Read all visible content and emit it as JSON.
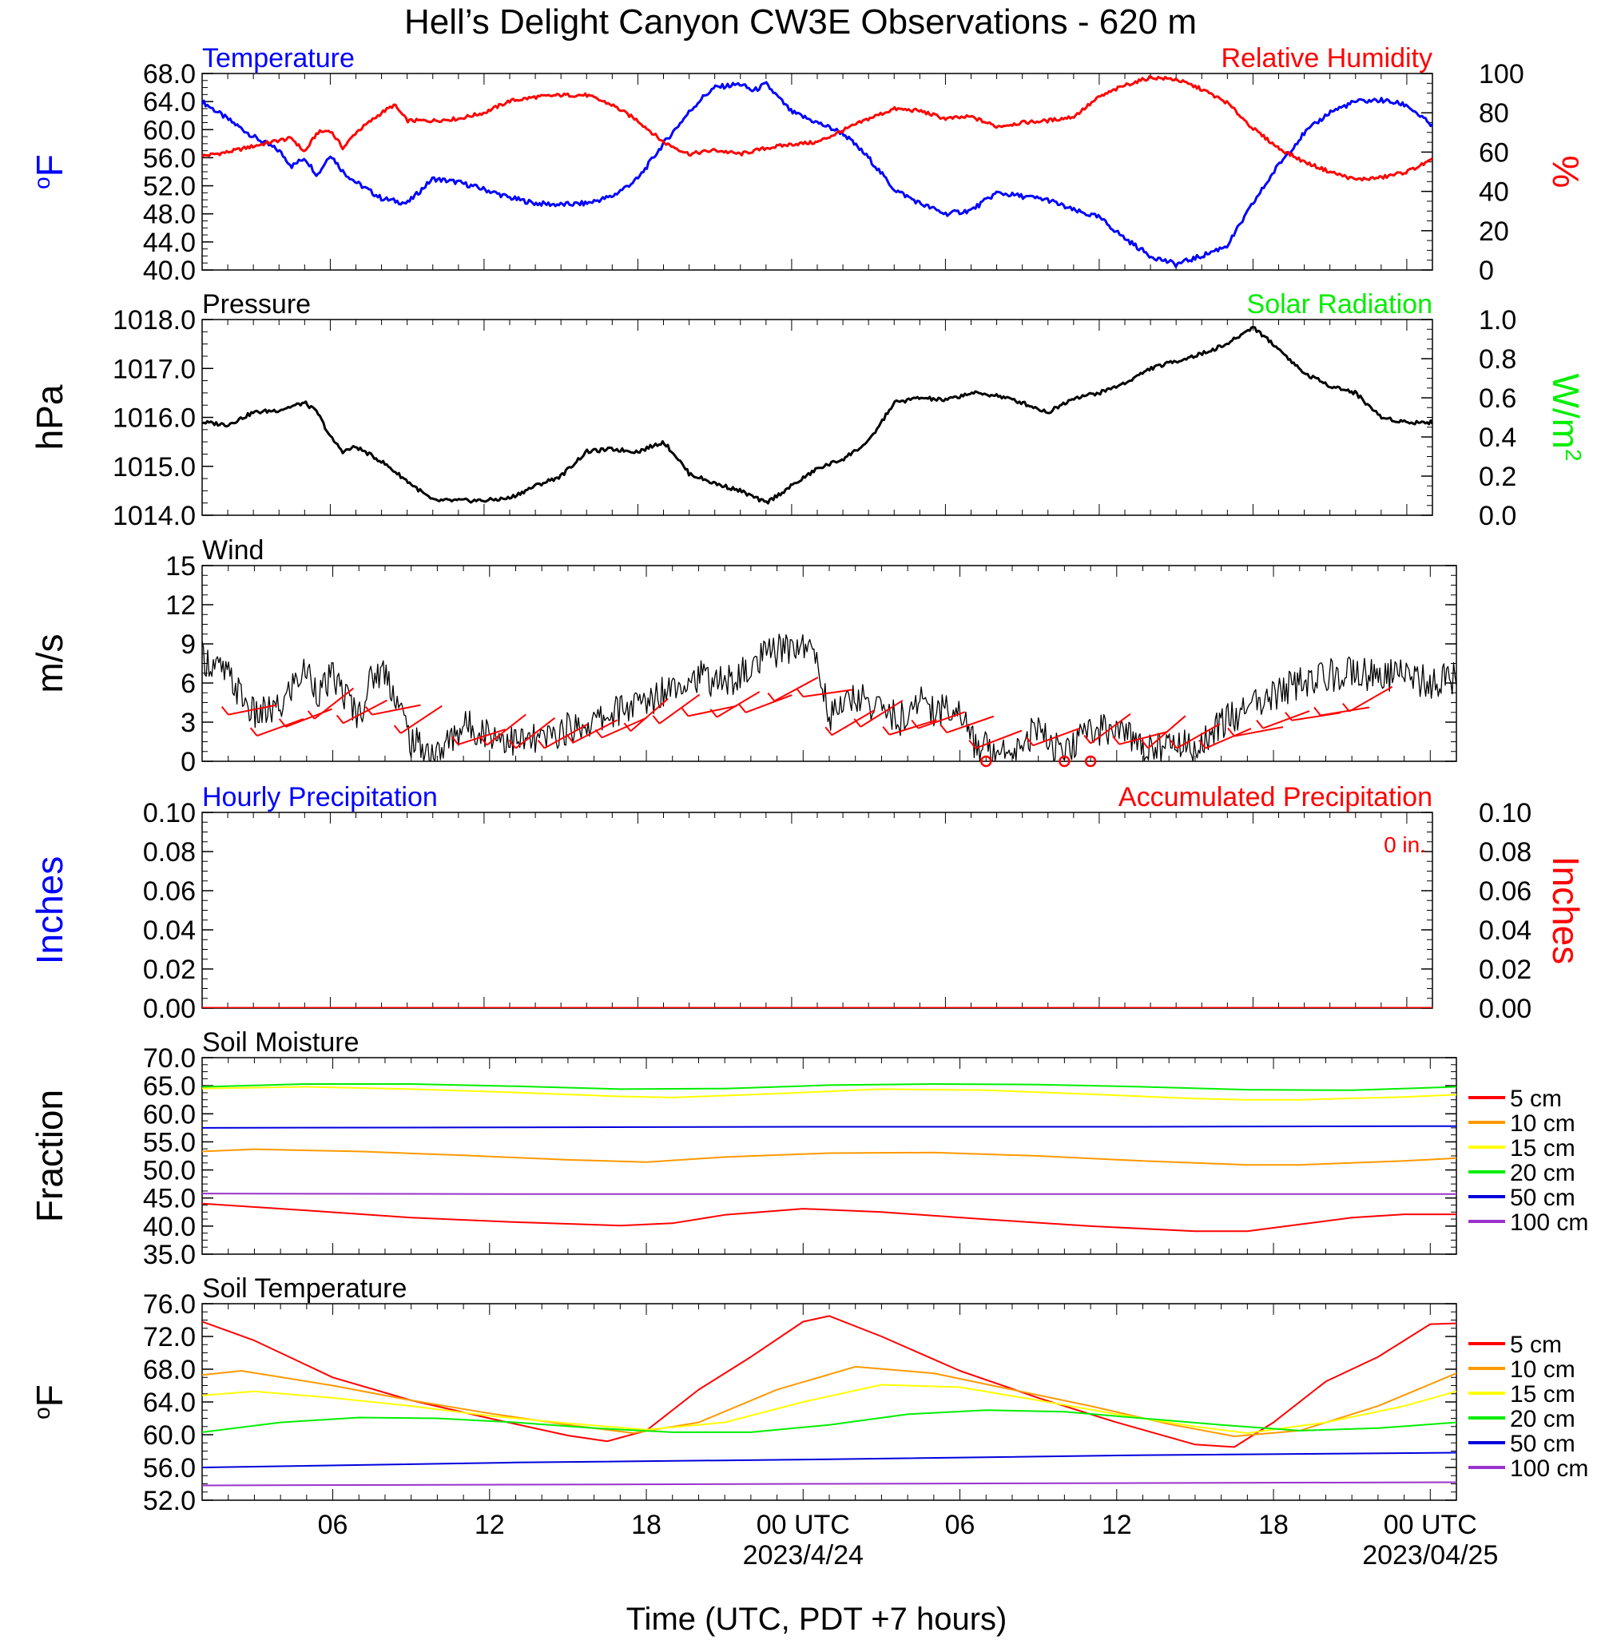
{
  "title": "Hell’s Delight Canyon CW3E Observations - 620 m",
  "xlabel": "Time (UTC, PDT +7 hours)",
  "x_axis": {
    "range_hours": [
      0,
      48
    ],
    "ticks": [
      {
        "hour": 5,
        "label": "06",
        "sub": ""
      },
      {
        "hour": 11,
        "label": "12",
        "sub": ""
      },
      {
        "hour": 17,
        "label": "18",
        "sub": ""
      },
      {
        "hour": 23,
        "label": "00 UTC",
        "sub": "2023/4/24"
      },
      {
        "hour": 29,
        "label": "06",
        "sub": ""
      },
      {
        "hour": 35,
        "label": "12",
        "sub": ""
      },
      {
        "hour": 41,
        "label": "18",
        "sub": ""
      },
      {
        "hour": 47,
        "label": "00 UTC",
        "sub": "2023/04/25"
      }
    ]
  },
  "colors": {
    "temperature": "#0000ff",
    "humidity": "#ff0000",
    "pressure": "#000000",
    "solar": "#00ee00",
    "wind": "#000000",
    "wind_barb": "#ff0000",
    "precip_hourly": "#0000ff",
    "precip_accum": "#ff0000"
  },
  "chart_data": [
    {
      "id": "temp_rh",
      "type": "line",
      "title_left": "Temperature",
      "title_right": "Relative Humidity",
      "ylabel_left": "oF",
      "ylabel_right": "%",
      "ylim_left": [
        40,
        68
      ],
      "ylim_right": [
        0,
        100
      ],
      "yticks_left": [
        "68.0",
        "64.0",
        "60.0",
        "56.0",
        "52.0",
        "48.0",
        "44.0",
        "40.0"
      ],
      "yticks_right": [
        "100",
        "80",
        "60",
        "40",
        "20",
        "0"
      ],
      "series": [
        {
          "name": "Temperature",
          "axis": "left",
          "color": "#0000ff",
          "x": [
            0,
            1,
            2,
            3,
            3.5,
            4,
            4.5,
            5,
            5.5,
            6,
            7,
            8,
            9,
            10,
            11,
            12,
            13,
            14,
            15,
            16,
            17,
            18,
            19,
            19.5,
            20,
            21,
            21.5,
            22,
            23,
            24,
            25,
            26,
            27,
            28,
            29,
            30,
            31,
            32,
            33,
            34,
            35,
            36,
            37,
            38,
            39,
            40,
            41,
            42,
            43,
            44,
            45,
            46,
            47,
            48
          ],
          "y": [
            64,
            61.5,
            59,
            57,
            54.8,
            56,
            53.5,
            56.5,
            54,
            52.5,
            50.2,
            49.5,
            53,
            52.5,
            51.5,
            50.3,
            49.5,
            49.3,
            49.5,
            50.5,
            53,
            58,
            62.5,
            64.5,
            66,
            66.5,
            65.5,
            66.5,
            62.5,
            61,
            59.5,
            56,
            51.5,
            49.5,
            48,
            48.5,
            51,
            50.5,
            50,
            48.5,
            47.5,
            44.5,
            42,
            40.8,
            42,
            43.5,
            49.5,
            55,
            59.5,
            62.5,
            64,
            64.2,
            63.5,
            60.5
          ]
        },
        {
          "name": "Relative Humidity",
          "axis": "right",
          "color": "#ff0000",
          "x": [
            0,
            1,
            2,
            3,
            3.5,
            4,
            4.5,
            5,
            5.5,
            6,
            7,
            7.5,
            8,
            9,
            10,
            11,
            12,
            13,
            14,
            15,
            16,
            17,
            18,
            19,
            20,
            21,
            22,
            23,
            24,
            25,
            26,
            27,
            28,
            29,
            30,
            31,
            32,
            33,
            34,
            35,
            36,
            37,
            38,
            39,
            40,
            41,
            42,
            43,
            44,
            45,
            46,
            47,
            48
          ],
          "y": [
            58,
            60,
            63,
            66,
            67,
            60,
            70,
            71,
            62,
            70,
            80,
            84,
            76,
            76,
            77,
            80,
            86,
            88,
            89,
            89,
            84,
            76,
            65,
            59,
            61,
            59,
            62,
            64,
            65,
            71,
            77,
            82,
            81,
            77,
            78,
            73,
            75,
            76,
            78,
            88,
            94,
            98,
            97,
            92,
            85,
            72,
            62,
            55,
            50,
            46,
            47,
            50,
            56
          ]
        }
      ]
    },
    {
      "id": "pressure_solar",
      "type": "line",
      "title_left": "Pressure",
      "title_right": "Solar Radiation",
      "ylabel_left": "hPa",
      "ylabel_right": "W/m2",
      "ylim_left": [
        1014,
        1018
      ],
      "ylim_right": [
        0,
        1
      ],
      "yticks_left": [
        "1018.0",
        "1017.0",
        "1016.0",
        "1015.0",
        "1014.0"
      ],
      "yticks_right": [
        "1.0",
        "0.8",
        "0.6",
        "0.4",
        "0.2",
        "0.0"
      ],
      "series": [
        {
          "name": "Pressure",
          "axis": "left",
          "color": "#000000",
          "x": [
            0,
            1,
            2,
            3,
            4,
            4.5,
            5,
            5.5,
            6,
            7,
            8,
            9,
            10,
            11,
            12,
            13,
            14,
            15,
            16,
            17,
            18,
            18.5,
            19,
            20,
            21,
            22,
            23,
            24,
            25,
            26,
            27,
            28,
            29,
            30,
            31,
            32,
            33,
            34,
            35,
            36,
            37,
            38,
            39,
            40,
            41,
            42,
            43,
            44,
            45,
            46,
            47,
            48
          ],
          "y": [
            1015.9,
            1015.85,
            1016.1,
            1016.15,
            1016.3,
            1016.1,
            1015.6,
            1015.3,
            1015.4,
            1015.1,
            1014.7,
            1014.3,
            1014.3,
            1014.3,
            1014.35,
            1014.6,
            1014.8,
            1015.3,
            1015.35,
            1015.3,
            1015.5,
            1015.2,
            1014.85,
            1014.65,
            1014.5,
            1014.25,
            1014.6,
            1014.95,
            1015.15,
            1015.5,
            1016.3,
            1016.4,
            1016.35,
            1016.5,
            1016.45,
            1016.3,
            1016.1,
            1016.4,
            1016.5,
            1016.7,
            1017.0,
            1017.15,
            1017.3,
            1017.5,
            1017.85,
            1017.4,
            1016.9,
            1016.65,
            1016.5,
            1016.0,
            1015.9,
            1015.9
          ]
        }
      ]
    },
    {
      "id": "wind",
      "type": "line",
      "title_left": "Wind",
      "ylabel_left": "m/s",
      "ylim_left": [
        0,
        15
      ],
      "yticks_left": [
        "15",
        "12",
        "9",
        "6",
        "3",
        "0"
      ],
      "series": [
        {
          "name": "Wind",
          "axis": "left",
          "color": "#000000",
          "x": [
            0,
            1,
            2,
            3,
            3.5,
            4,
            4.5,
            5,
            6,
            6.5,
            7,
            7.5,
            8,
            9,
            10,
            11,
            12,
            13,
            14,
            15,
            16,
            17,
            18,
            19,
            20,
            21,
            21.5,
            22,
            23,
            23.5,
            24,
            25,
            26,
            27,
            27.5,
            28,
            29,
            29.5,
            30,
            31,
            32,
            33,
            33.5,
            34,
            35,
            36,
            37,
            37.5,
            38,
            39,
            40,
            41,
            42,
            43,
            44,
            45,
            46,
            47,
            48
          ],
          "y": [
            8,
            6.5,
            3.5,
            4,
            6,
            7,
            5.2,
            6.5,
            3.5,
            6.5,
            7,
            4.5,
            1.5,
            0.5,
            2.8,
            2.2,
            1.5,
            1.6,
            2.5,
            3,
            4,
            4.5,
            6,
            6.5,
            6,
            7,
            8,
            8.5,
            9,
            8,
            3.5,
            5,
            4,
            3,
            5,
            4,
            4,
            1.5,
            1,
            1,
            2.5,
            0.3,
            1.5,
            2.5,
            2.5,
            1.2,
            1.2,
            1.3,
            1,
            3,
            4,
            5,
            6,
            6.5,
            7,
            6.5,
            6.5,
            6,
            6.5
          ]
        }
      ],
      "calm_marker_hours": [
        30,
        33,
        34
      ]
    },
    {
      "id": "precip",
      "type": "line",
      "title_left": "Hourly Precipitation",
      "title_right": "Accumulated Precipitation",
      "annotation": "0 in.",
      "ylabel_left": "Inches",
      "ylabel_right": "Inches",
      "ylim_left": [
        0,
        0.1
      ],
      "ylim_right": [
        0,
        0.1
      ],
      "yticks_left": [
        "0.10",
        "0.08",
        "0.06",
        "0.04",
        "0.02",
        "0.00"
      ],
      "yticks_right": [
        "0.10",
        "0.08",
        "0.06",
        "0.04",
        "0.02",
        "0.00"
      ],
      "series": [
        {
          "name": "Hourly Precipitation",
          "axis": "left",
          "color": "#0000ff",
          "x": [
            0,
            48
          ],
          "y": [
            0,
            0
          ]
        },
        {
          "name": "Accumulated Precipitation",
          "axis": "right",
          "color": "#ff0000",
          "x": [
            0,
            48
          ],
          "y": [
            0,
            0
          ]
        }
      ]
    },
    {
      "id": "soil_moisture",
      "type": "line",
      "title_left": "Soil Moisture",
      "ylabel_left": "Fraction",
      "ylim_left": [
        35,
        70
      ],
      "yticks_left": [
        "70.0",
        "65.0",
        "60.0",
        "55.0",
        "50.0",
        "45.0",
        "40.0",
        "35.0"
      ],
      "legend": [
        "5 cm",
        "10 cm",
        "15 cm",
        "20 cm",
        "50 cm",
        "100 cm"
      ],
      "series": [
        {
          "name": "5 cm",
          "color": "#ff0000",
          "x": [
            0,
            4,
            8,
            12,
            16,
            18,
            20,
            23,
            26,
            30,
            34,
            38,
            40,
            42,
            44,
            46,
            48
          ],
          "y": [
            44,
            42.8,
            41.5,
            40.7,
            40.1,
            40.5,
            42,
            43.1,
            42.5,
            41.2,
            40,
            39.1,
            39.1,
            40.3,
            41.5,
            42.1,
            42.1
          ]
        },
        {
          "name": "10 cm",
          "color": "#ff9900",
          "x": [
            0,
            2,
            6,
            10,
            14,
            17,
            20,
            24,
            28,
            32,
            36,
            40,
            42,
            46,
            48
          ],
          "y": [
            53.3,
            53.7,
            53.3,
            52.6,
            51.8,
            51.4,
            52.3,
            53,
            53.1,
            52.5,
            51.6,
            50.9,
            50.9,
            51.6,
            52.1
          ]
        },
        {
          "name": "15 cm",
          "color": "#ffff00",
          "x": [
            0,
            4,
            8,
            12,
            16,
            18,
            22,
            26,
            30,
            34,
            38,
            40,
            42,
            46,
            48
          ],
          "y": [
            64.5,
            64.8,
            64.4,
            63.8,
            63.1,
            62.9,
            63.6,
            64.4,
            64.2,
            63.5,
            62.7,
            62.5,
            62.5,
            63,
            63.4
          ]
        },
        {
          "name": "20 cm",
          "color": "#00ee00",
          "x": [
            0,
            4,
            8,
            12,
            16,
            20,
            24,
            28,
            32,
            36,
            40,
            44,
            48
          ],
          "y": [
            64.8,
            65.3,
            65.3,
            64.9,
            64.4,
            64.5,
            65.1,
            65.3,
            65.2,
            64.8,
            64.3,
            64.2,
            64.8
          ]
        },
        {
          "name": "50 cm",
          "color": "#0000dd",
          "x": [
            0,
            12,
            24,
            36,
            48
          ],
          "y": [
            57.5,
            57.6,
            57.7,
            57.7,
            57.8
          ]
        },
        {
          "name": "100 cm",
          "color": "#9933cc",
          "x": [
            0,
            12,
            24,
            36,
            48
          ],
          "y": [
            45.8,
            45.7,
            45.7,
            45.7,
            45.7
          ]
        }
      ]
    },
    {
      "id": "soil_temperature",
      "type": "line",
      "title_left": "Soil Temperature",
      "ylabel_left": "oF",
      "ylim_left": [
        52,
        76
      ],
      "yticks_left": [
        "76.0",
        "72.0",
        "68.0",
        "64.0",
        "60.0",
        "56.0",
        "52.0"
      ],
      "legend": [
        "5 cm",
        "10 cm",
        "15 cm",
        "20 cm",
        "50 cm",
        "100 cm"
      ],
      "series": [
        {
          "name": "5 cm",
          "color": "#ff0000",
          "x": [
            0,
            2,
            5,
            8,
            11,
            14,
            15.5,
            17,
            19,
            21,
            23,
            24,
            26,
            29,
            32,
            35,
            38,
            39.5,
            41,
            43,
            45,
            47,
            48
          ],
          "y": [
            73.8,
            71.5,
            67,
            64.2,
            62,
            59.9,
            59.2,
            60.5,
            65.5,
            69.5,
            73.8,
            74.5,
            72,
            67.8,
            64.5,
            61.5,
            58.8,
            58.5,
            61.5,
            66.5,
            69.5,
            73.5,
            73.6
          ]
        },
        {
          "name": "10 cm",
          "color": "#ff9900",
          "x": [
            0,
            1.5,
            5,
            8,
            11,
            14,
            16.5,
            19,
            22,
            25,
            28,
            31,
            34,
            37,
            39.5,
            42,
            45,
            48
          ],
          "y": [
            67.3,
            67.8,
            66,
            64.2,
            62.6,
            61.2,
            60.2,
            61.5,
            65.5,
            68.3,
            67.5,
            65.5,
            63.5,
            61.3,
            59.8,
            60.5,
            63.5,
            67.5
          ]
        },
        {
          "name": "15 cm",
          "color": "#ffff00",
          "x": [
            0,
            2,
            5,
            8,
            11,
            14,
            17,
            20,
            23,
            26,
            29,
            32,
            35,
            38,
            40,
            43,
            46,
            48
          ],
          "y": [
            64.8,
            65.3,
            64.5,
            63.5,
            62.3,
            61.4,
            60.6,
            61.5,
            64,
            66.1,
            65.8,
            64.2,
            62.5,
            61,
            60.2,
            61.5,
            63.5,
            65.3
          ]
        },
        {
          "name": "20 cm",
          "color": "#00ee00",
          "x": [
            0,
            3,
            6,
            9,
            12,
            15,
            18,
            21,
            24,
            27,
            30,
            33,
            36,
            39,
            42,
            45,
            48
          ],
          "y": [
            60.3,
            61.5,
            62.1,
            62,
            61.5,
            60.8,
            60.3,
            60.3,
            61.2,
            62.5,
            63,
            62.8,
            62,
            61.2,
            60.5,
            60.8,
            61.5
          ]
        },
        {
          "name": "50 cm",
          "color": "#0000dd",
          "x": [
            0,
            12,
            24,
            36,
            48
          ],
          "y": [
            56,
            56.6,
            57,
            57.5,
            57.8
          ]
        },
        {
          "name": "100 cm",
          "color": "#9933cc",
          "x": [
            0,
            12,
            24,
            36,
            48
          ],
          "y": [
            53.8,
            53.9,
            54,
            54.1,
            54.2
          ]
        }
      ]
    }
  ]
}
